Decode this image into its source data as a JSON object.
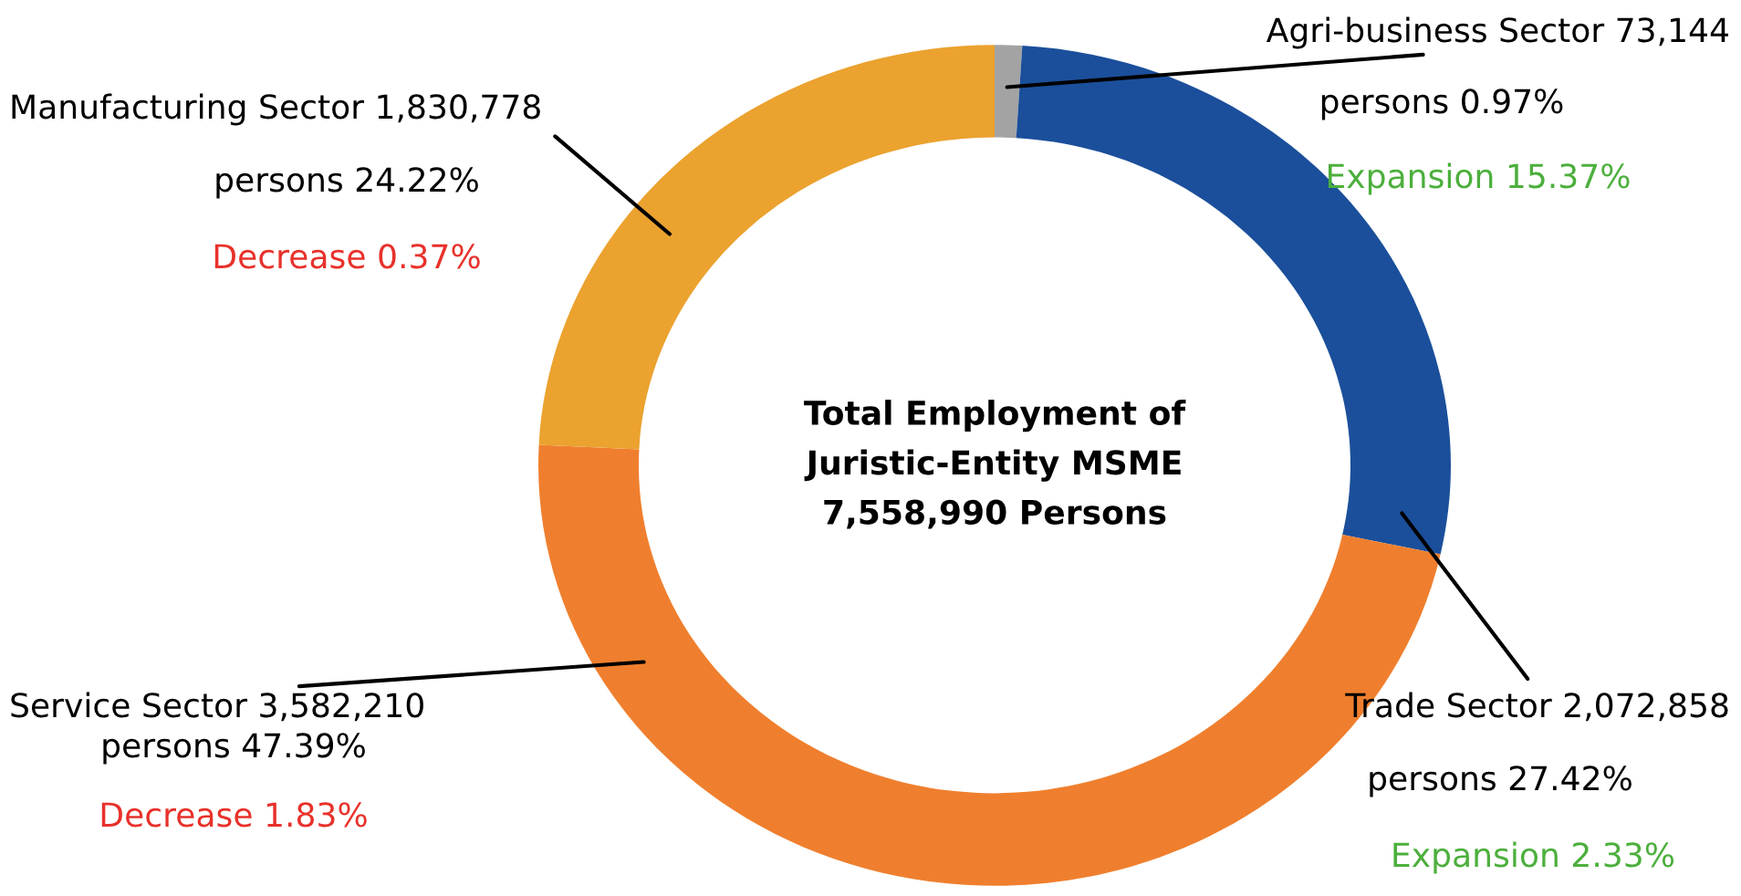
{
  "chart_data": {
    "type": "donut",
    "title": "Total Employment of\nJuristic-Entity MSME\n7,558,990 Persons",
    "categories": [
      "Agri-business Sector",
      "Trade Sector",
      "Service Sector",
      "Manufacturing Sector"
    ],
    "values": [
      73144,
      2072858,
      3582210,
      1830778
    ],
    "value_labels": [
      "73,144",
      "2,072,858",
      "3,582,210",
      "1,830,778"
    ],
    "colors": [
      "#a3a3a3",
      "#1b4f9b",
      "#ef7f2e",
      "#eba22f"
    ],
    "annotations": [
      "persons 0.97%",
      "Expansion 15.37%",
      "persons 27.42%",
      "Expansion 2.33%",
      "persons 47.39%",
      "Decrease 1.83%",
      "persons 24.22%",
      "Decrease 0.37%"
    ],
    "legend": false
  }
}
